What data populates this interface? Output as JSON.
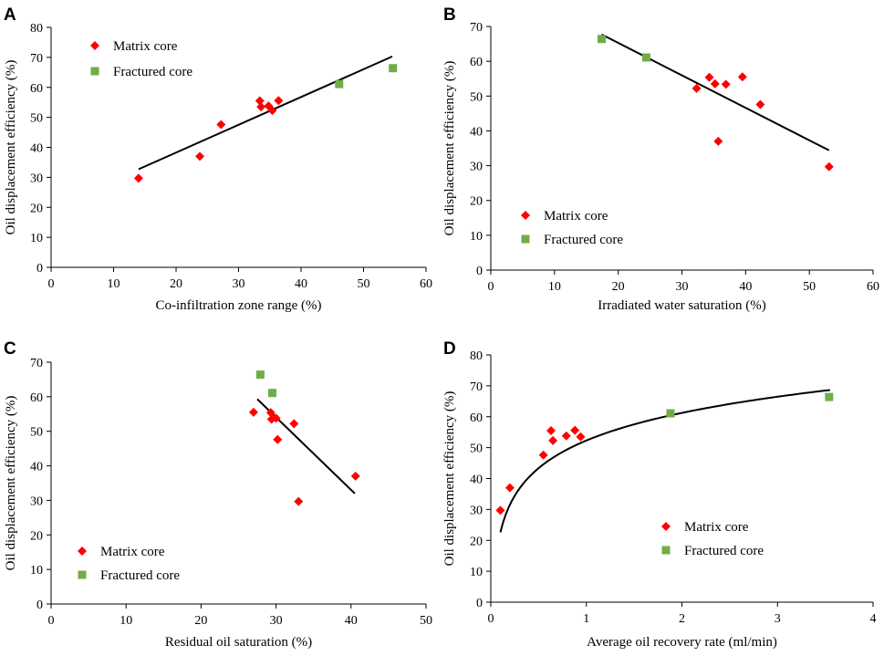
{
  "colors": {
    "matrix": "#ff0000",
    "fractured": "#70ad47",
    "line": "#000000"
  },
  "chart_data": [
    {
      "id": "A",
      "panel_label": "A",
      "type": "scatter",
      "xlabel": "Co-infiltration zone range (%)",
      "ylabel": "Oil displacement efficiency (%)",
      "xlim": [
        0,
        60
      ],
      "xticks": [
        0,
        10,
        20,
        30,
        40,
        50,
        60
      ],
      "ylim": [
        0,
        80
      ],
      "yticks": [
        0,
        10,
        20,
        30,
        40,
        50,
        60,
        70,
        80
      ],
      "legend": [
        "Matrix core",
        "Fractured core"
      ],
      "legend_position": "top-left",
      "series": [
        {
          "name": "Matrix core",
          "marker": "diamond",
          "points": [
            [
              14,
              29.7
            ],
            [
              23.8,
              37
            ],
            [
              27.2,
              47.6
            ],
            [
              33.4,
              55.5
            ],
            [
              33.6,
              53.5
            ],
            [
              34.8,
              53.8
            ],
            [
              35.4,
              52.3
            ],
            [
              36.4,
              55.6
            ]
          ]
        },
        {
          "name": "Fractured core",
          "marker": "square",
          "points": [
            [
              46.1,
              61.1
            ],
            [
              54.7,
              66.4
            ]
          ]
        }
      ],
      "fit": {
        "kind": "linear",
        "x0": 14,
        "y0": 32.7,
        "x1": 54.6,
        "y1": 70.3
      }
    },
    {
      "id": "B",
      "panel_label": "B",
      "type": "scatter",
      "xlabel": "Irradiated water saturation (%)",
      "ylabel": "Oil displacement efficiency (%)",
      "xlim": [
        0,
        60
      ],
      "xticks": [
        0,
        10,
        20,
        30,
        40,
        50,
        60
      ],
      "ylim": [
        0,
        70
      ],
      "yticks": [
        0,
        10,
        20,
        30,
        40,
        50,
        60,
        70
      ],
      "legend": [
        "Matrix core",
        "Fractured core"
      ],
      "legend_position": "bottom-left",
      "series": [
        {
          "name": "Matrix core",
          "marker": "diamond",
          "points": [
            [
              32.3,
              52.2
            ],
            [
              34.3,
              55.4
            ],
            [
              35.2,
              53.5
            ],
            [
              35.7,
              37
            ],
            [
              36.9,
              53.4
            ],
            [
              39.5,
              55.5
            ],
            [
              42.3,
              47.6
            ],
            [
              53.1,
              29.7
            ]
          ]
        },
        {
          "name": "Fractured core",
          "marker": "square",
          "points": [
            [
              17.4,
              66.4
            ],
            [
              24.4,
              61.1
            ]
          ]
        }
      ],
      "fit": {
        "kind": "linear",
        "x0": 17.4,
        "y0": 67.7,
        "x1": 53.1,
        "y1": 34.4
      }
    },
    {
      "id": "C",
      "panel_label": "C",
      "type": "scatter",
      "xlabel": "Residual oil saturation (%)",
      "ylabel": "Oil displacement efficiency (%)",
      "xlim": [
        0,
        50
      ],
      "xticks": [
        0,
        10,
        20,
        30,
        40,
        50
      ],
      "ylim": [
        0,
        70
      ],
      "yticks": [
        0,
        10,
        20,
        30,
        40,
        50,
        60,
        70
      ],
      "legend": [
        "Matrix core",
        "Fractured core"
      ],
      "legend_position": "bottom-left",
      "series": [
        {
          "name": "Matrix core",
          "marker": "diamond",
          "points": [
            [
              27,
              55.5
            ],
            [
              29.3,
              55.4
            ],
            [
              29.4,
              53.5
            ],
            [
              30,
              53.8
            ],
            [
              30.2,
              47.6
            ],
            [
              32.4,
              52.2
            ],
            [
              33,
              29.7
            ],
            [
              40.6,
              37
            ]
          ]
        },
        {
          "name": "Fractured core",
          "marker": "square",
          "points": [
            [
              27.9,
              66.4
            ],
            [
              29.5,
              61.1
            ]
          ]
        }
      ],
      "fit": {
        "kind": "linear",
        "x0": 27.5,
        "y0": 59.3,
        "x1": 40.5,
        "y1": 32
      }
    },
    {
      "id": "D",
      "panel_label": "D",
      "type": "scatter",
      "xlabel": "Average oil recovery rate (ml/min)",
      "ylabel": "Oil displacement efficiency (%)",
      "xlim": [
        0,
        4
      ],
      "xticks": [
        0,
        1,
        2,
        3,
        4
      ],
      "ylim": [
        0,
        80
      ],
      "yticks": [
        0,
        10,
        20,
        30,
        40,
        50,
        60,
        70,
        80
      ],
      "legend": [
        "Matrix core",
        "Fractured core"
      ],
      "legend_position": "bottom-center",
      "series": [
        {
          "name": "Matrix core",
          "marker": "diamond",
          "points": [
            [
              0.1,
              29.7
            ],
            [
              0.2,
              37
            ],
            [
              0.55,
              47.6
            ],
            [
              0.63,
              55.5
            ],
            [
              0.65,
              52.3
            ],
            [
              0.79,
              53.8
            ],
            [
              0.88,
              55.6
            ],
            [
              0.94,
              53.5
            ]
          ]
        },
        {
          "name": "Fractured core",
          "marker": "square",
          "points": [
            [
              1.88,
              61.1
            ],
            [
              3.54,
              66.4
            ]
          ]
        }
      ],
      "fit": {
        "kind": "logarithmic",
        "a": 52.3,
        "b": 12.9,
        "x0": 0.1,
        "x1": 3.55
      }
    }
  ]
}
